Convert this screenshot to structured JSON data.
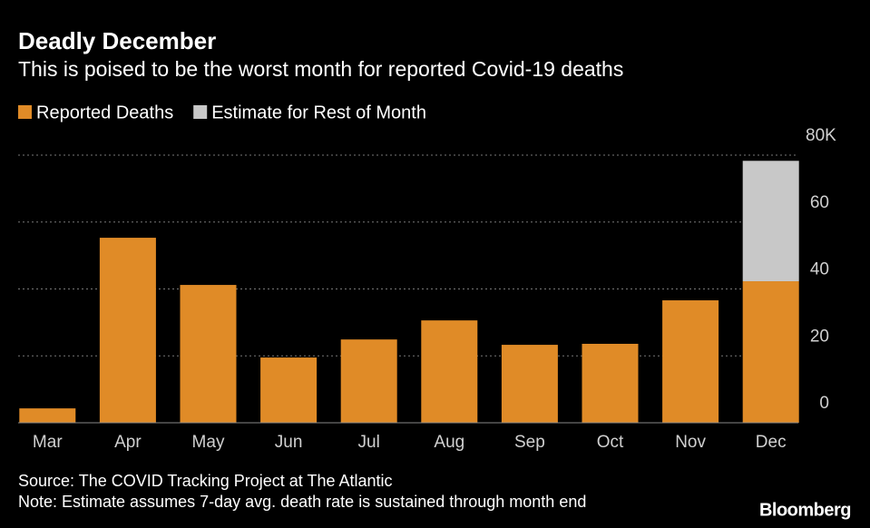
{
  "chart_data": {
    "type": "stacked_bar",
    "title": "Deadly December",
    "subtitle": "This is poised to be the worst month for reported Covid-19 deaths",
    "categories": [
      "Mar",
      "Apr",
      "May",
      "Jun",
      "Jul",
      "Aug",
      "Sep",
      "Oct",
      "Nov",
      "Dec"
    ],
    "series": [
      {
        "name": "Reported Deaths",
        "color": "#e08b27",
        "values": [
          4.3,
          55.3,
          41.2,
          19.5,
          24.9,
          30.6,
          23.3,
          23.6,
          36.6,
          42.3
        ]
      },
      {
        "name": "Estimate for Rest of Month",
        "color": "#c8c8c8",
        "values": [
          null,
          null,
          null,
          null,
          null,
          null,
          null,
          null,
          null,
          36.0
        ]
      }
    ],
    "ylim": [
      0,
      80
    ],
    "yticks": [
      0,
      20,
      40,
      60,
      {
        "value": 80,
        "label": "80K"
      }
    ],
    "grid": true,
    "source": "Source: The COVID Tracking Project at The Atlantic",
    "note": "Note: Estimate assumes 7-day avg. death rate is sustained through month end",
    "brand": "Bloomberg"
  }
}
